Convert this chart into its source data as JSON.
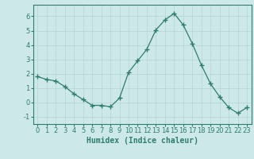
{
  "x": [
    0,
    1,
    2,
    3,
    4,
    5,
    6,
    7,
    8,
    9,
    10,
    11,
    12,
    13,
    14,
    15,
    16,
    17,
    18,
    19,
    20,
    21,
    22,
    23
  ],
  "y": [
    1.8,
    1.6,
    1.5,
    1.1,
    0.6,
    0.2,
    -0.2,
    -0.2,
    -0.3,
    0.3,
    2.1,
    2.9,
    3.7,
    5.05,
    5.75,
    6.2,
    5.4,
    4.1,
    2.6,
    1.3,
    0.4,
    -0.35,
    -0.75,
    -0.35
  ],
  "line_color": "#2e7d6e",
  "marker": "+",
  "marker_size": 4,
  "bg_color": "#cce8e8",
  "grid_color": "#b8d8d8",
  "xlabel": "Humidex (Indice chaleur)",
  "xlabel_fontsize": 7,
  "tick_fontsize": 6,
  "ylim": [
    -1.5,
    6.8
  ],
  "xlim": [
    -0.5,
    23.5
  ],
  "yticks": [
    -1,
    0,
    1,
    2,
    3,
    4,
    5,
    6
  ],
  "xticks": [
    0,
    1,
    2,
    3,
    4,
    5,
    6,
    7,
    8,
    9,
    10,
    11,
    12,
    13,
    14,
    15,
    16,
    17,
    18,
    19,
    20,
    21,
    22,
    23
  ]
}
